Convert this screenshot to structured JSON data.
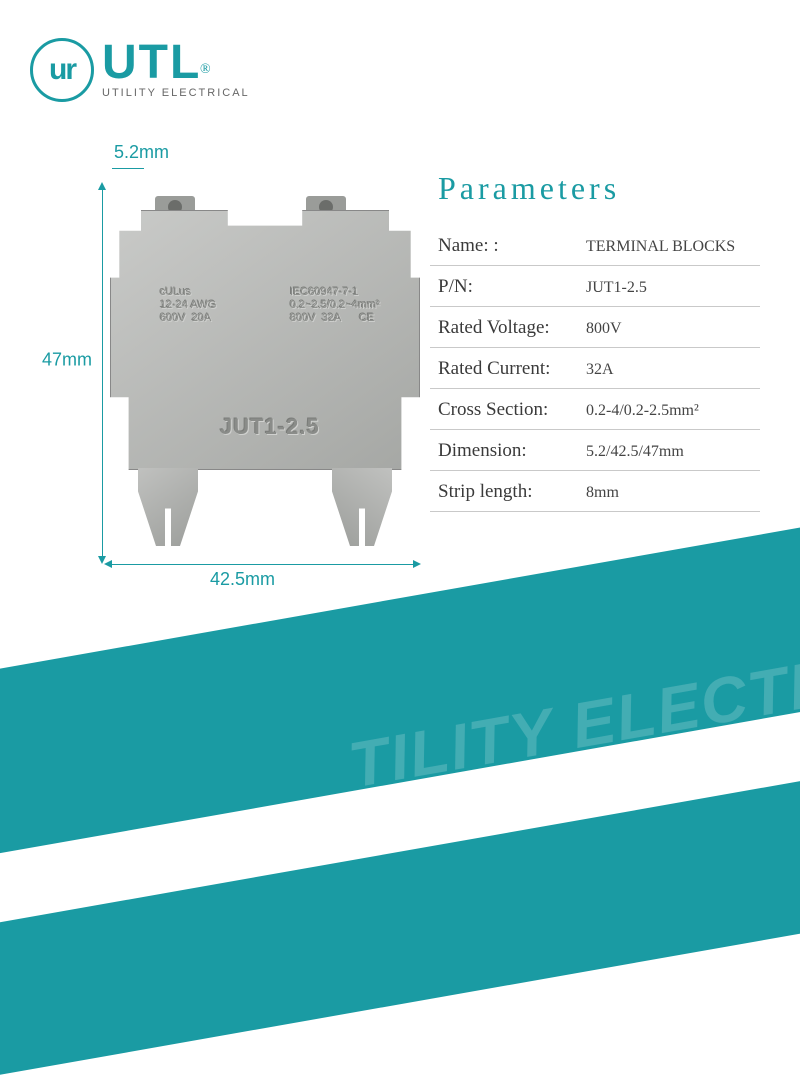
{
  "logo": {
    "circle_text": "ur",
    "main": "UTL",
    "reg": "®",
    "sub": "UTILITY ELECTRICAL"
  },
  "dimensions": {
    "top": "5.2mm",
    "left": "47mm",
    "bottom": "42.5mm"
  },
  "product_embossed": {
    "ul_block": "cULus\n12-24 AWG\n600V  20A",
    "iec_block": "IEC60947-7-1\n0.2~2.5/0.2~4mm²\n800V  32A      CE",
    "model": "JUT1-2.5"
  },
  "panel": {
    "title": "Parameters",
    "rows": [
      {
        "label": "Name: :",
        "value": "TERMINAL BLOCKS"
      },
      {
        "label": "P/N:",
        "value": "JUT1-2.5"
      },
      {
        "label": "Rated Voltage:",
        "value": "800V"
      },
      {
        "label": "Rated Current:",
        "value": "32A"
      },
      {
        "label": "Cross Section:",
        "value": "0.2-4/0.2-2.5mm²"
      },
      {
        "label": "Dimension:",
        "value": "5.2/42.5/47mm"
      },
      {
        "label": "Strip length:",
        "value": "8mm"
      }
    ]
  },
  "watermark": "TILITY ELECTR",
  "colors": {
    "accent": "#1a9ba3",
    "body_gray": "#b3b5b2",
    "text": "#3a3a3a",
    "divider": "#c9c9c9",
    "background": "#ffffff"
  },
  "typography": {
    "title_fontsize_pt": 24,
    "label_fontsize_pt": 14,
    "value_fontsize_pt": 12,
    "dim_fontsize_pt": 14,
    "font_family": "Georgia / serif"
  },
  "type": "infographic"
}
